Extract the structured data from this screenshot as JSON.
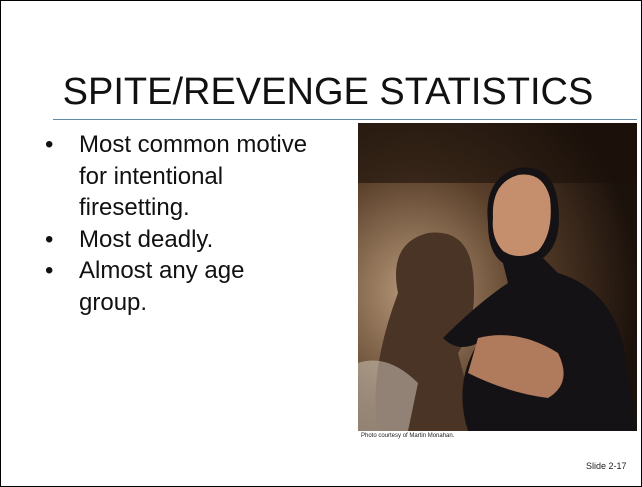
{
  "title": "SPITE/REVENGE STATISTICS",
  "bullets": [
    {
      "lines": [
        "Most common motive",
        "for intentional",
        "firesetting."
      ]
    },
    {
      "lines": [
        "Most deadly."
      ]
    },
    {
      "lines": [
        "Almost any age",
        "group."
      ]
    }
  ],
  "photo_caption": "Photo courtesy of Martin Monahan.",
  "slide_number": "Slide 2-17"
}
